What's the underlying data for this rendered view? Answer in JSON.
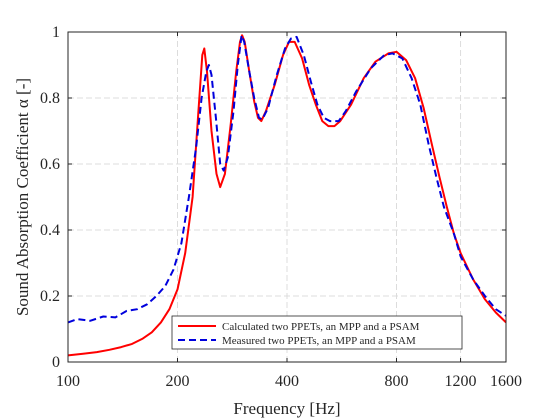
{
  "chart_data": {
    "type": "line",
    "xscale": "log",
    "xlabel": "Frequency [Hz]",
    "ylabel": "Sound Absorption Coefficient α [-]",
    "xlim": [
      100,
      1600
    ],
    "ylim": [
      0,
      1
    ],
    "xticks": [
      100,
      200,
      400,
      800,
      1200,
      1600
    ],
    "xtick_labels": [
      "100",
      "200",
      "400",
      "800",
      "1200",
      "1600"
    ],
    "yticks": [
      0,
      0.2,
      0.4,
      0.6,
      0.8,
      1
    ],
    "ytick_labels": [
      "0",
      "0.2",
      "0.4",
      "0.6",
      "0.8",
      "1"
    ],
    "grid": true,
    "legend_position": "bottom-right",
    "series": [
      {
        "name": "Calculated two PPETs, an MPP and a PSAM",
        "color": "#ff0000",
        "style": "solid",
        "points": [
          [
            100,
            0.02
          ],
          [
            110,
            0.025
          ],
          [
            120,
            0.03
          ],
          [
            130,
            0.037
          ],
          [
            140,
            0.045
          ],
          [
            150,
            0.055
          ],
          [
            160,
            0.07
          ],
          [
            170,
            0.09
          ],
          [
            180,
            0.12
          ],
          [
            190,
            0.16
          ],
          [
            200,
            0.22
          ],
          [
            210,
            0.33
          ],
          [
            220,
            0.5
          ],
          [
            228,
            0.75
          ],
          [
            234,
            0.93
          ],
          [
            237,
            0.95
          ],
          [
            241,
            0.88
          ],
          [
            248,
            0.7
          ],
          [
            256,
            0.57
          ],
          [
            262,
            0.53
          ],
          [
            270,
            0.57
          ],
          [
            280,
            0.72
          ],
          [
            290,
            0.88
          ],
          [
            297,
            0.97
          ],
          [
            301,
            0.99
          ],
          [
            306,
            0.97
          ],
          [
            315,
            0.88
          ],
          [
            325,
            0.79
          ],
          [
            333,
            0.74
          ],
          [
            340,
            0.73
          ],
          [
            350,
            0.76
          ],
          [
            370,
            0.84
          ],
          [
            390,
            0.93
          ],
          [
            405,
            0.97
          ],
          [
            420,
            0.97
          ],
          [
            440,
            0.92
          ],
          [
            460,
            0.84
          ],
          [
            480,
            0.78
          ],
          [
            500,
            0.73
          ],
          [
            520,
            0.715
          ],
          [
            540,
            0.715
          ],
          [
            560,
            0.73
          ],
          [
            600,
            0.78
          ],
          [
            650,
            0.86
          ],
          [
            700,
            0.91
          ],
          [
            760,
            0.935
          ],
          [
            800,
            0.94
          ],
          [
            850,
            0.915
          ],
          [
            900,
            0.86
          ],
          [
            950,
            0.77
          ],
          [
            1000,
            0.66
          ],
          [
            1050,
            0.56
          ],
          [
            1100,
            0.47
          ],
          [
            1150,
            0.39
          ],
          [
            1200,
            0.33
          ],
          [
            1300,
            0.25
          ],
          [
            1400,
            0.19
          ],
          [
            1500,
            0.15
          ],
          [
            1600,
            0.12
          ]
        ]
      },
      {
        "name": "Measured two PPETs, an MPP and a PSAM",
        "color": "#0000dd",
        "style": "dashed",
        "points": [
          [
            100,
            0.12
          ],
          [
            106,
            0.13
          ],
          [
            115,
            0.125
          ],
          [
            125,
            0.138
          ],
          [
            135,
            0.135
          ],
          [
            145,
            0.155
          ],
          [
            155,
            0.16
          ],
          [
            165,
            0.175
          ],
          [
            175,
            0.2
          ],
          [
            185,
            0.23
          ],
          [
            195,
            0.28
          ],
          [
            205,
            0.36
          ],
          [
            215,
            0.5
          ],
          [
            225,
            0.65
          ],
          [
            233,
            0.8
          ],
          [
            240,
            0.88
          ],
          [
            244,
            0.9
          ],
          [
            248,
            0.87
          ],
          [
            255,
            0.74
          ],
          [
            262,
            0.6
          ],
          [
            268,
            0.58
          ],
          [
            275,
            0.62
          ],
          [
            285,
            0.76
          ],
          [
            293,
            0.9
          ],
          [
            300,
            0.99
          ],
          [
            305,
            0.97
          ],
          [
            315,
            0.88
          ],
          [
            325,
            0.8
          ],
          [
            335,
            0.74
          ],
          [
            342,
            0.735
          ],
          [
            355,
            0.77
          ],
          [
            375,
            0.87
          ],
          [
            395,
            0.95
          ],
          [
            410,
            0.98
          ],
          [
            425,
            0.985
          ],
          [
            445,
            0.93
          ],
          [
            465,
            0.85
          ],
          [
            485,
            0.78
          ],
          [
            505,
            0.74
          ],
          [
            525,
            0.73
          ],
          [
            555,
            0.73
          ],
          [
            580,
            0.76
          ],
          [
            620,
            0.82
          ],
          [
            680,
            0.89
          ],
          [
            740,
            0.93
          ],
          [
            780,
            0.935
          ],
          [
            830,
            0.92
          ],
          [
            880,
            0.86
          ],
          [
            930,
            0.78
          ],
          [
            980,
            0.66
          ],
          [
            1030,
            0.56
          ],
          [
            1080,
            0.47
          ],
          [
            1150,
            0.39
          ],
          [
            1200,
            0.32
          ],
          [
            1300,
            0.25
          ],
          [
            1400,
            0.2
          ],
          [
            1500,
            0.16
          ],
          [
            1600,
            0.14
          ]
        ]
      }
    ]
  }
}
